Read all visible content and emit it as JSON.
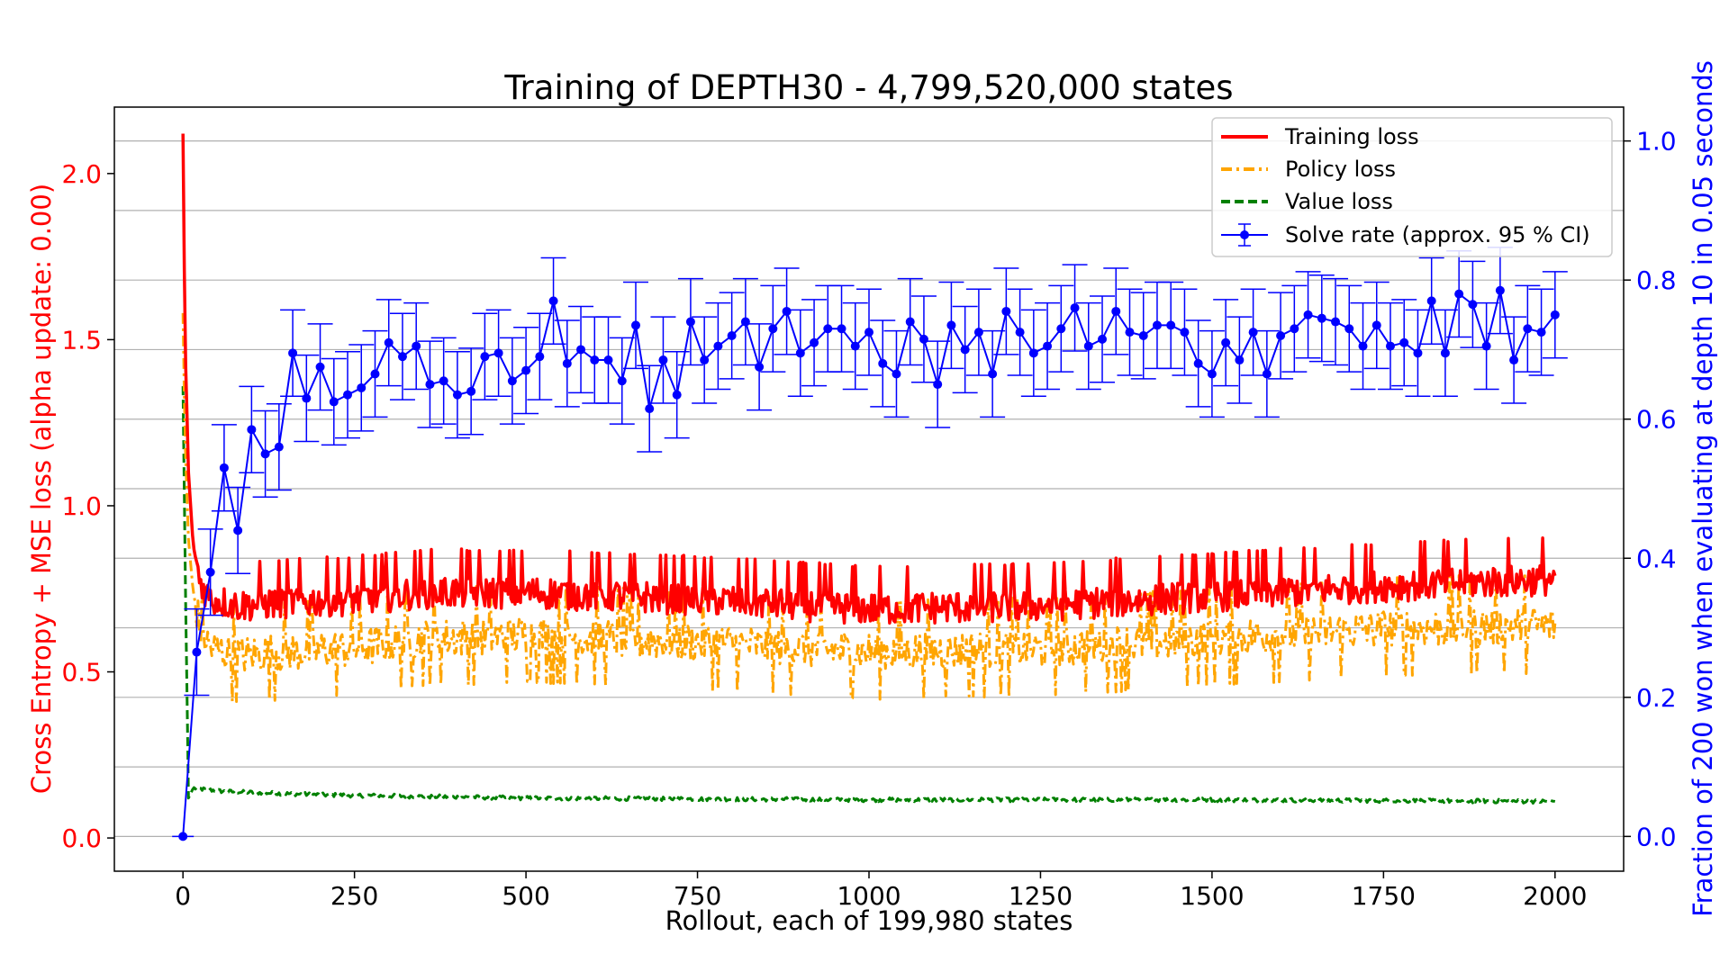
{
  "chart_data": {
    "type": "line",
    "title": "Training of DEPTH30 - 4,799,520,000 states",
    "xlabel": "Rollout, each of 199,980 states",
    "ylabel_left": "Cross Entropy + MSE loss (alpha update: 0.00)",
    "ylabel_right": "Fraction of 200 won when evaluating at depth 10 in 0.05 seconds",
    "xlim": [
      -100,
      2100
    ],
    "ylim_left": [
      -0.1,
      2.2
    ],
    "ylim_right": [
      -0.05,
      1.0487
    ],
    "xticks": [
      0,
      250,
      500,
      750,
      1000,
      1250,
      1500,
      1750,
      2000
    ],
    "xtick_labels": [
      "0",
      "250",
      "500",
      "750",
      "1000",
      "1250",
      "1500",
      "1750",
      "2000"
    ],
    "yticks_left": [
      0.0,
      0.5,
      1.0,
      1.5,
      2.0
    ],
    "ytick_labels_left": [
      "0.0",
      "0.5",
      "1.0",
      "1.5",
      "2.0"
    ],
    "yticks_right": [
      0.0,
      0.2,
      0.4,
      0.6,
      0.8,
      1.0
    ],
    "ytick_labels_right": [
      "0.0",
      "0.2",
      "0.4",
      "0.6",
      "0.8",
      "1.0"
    ],
    "grid": "horizontal on right axis",
    "legend_position": "top-right",
    "colors": {
      "left_axis": "#ff0000",
      "right_axis": "#0000ff",
      "training": "#ff0000",
      "policy": "#ffa500",
      "value": "#008000",
      "solve": "#0000ff",
      "grid": "#b0b0b0"
    },
    "loss_series": [
      {
        "name": "Training loss",
        "style": "solid",
        "color": "#ff0000",
        "profile": [
          [
            0,
            2.12
          ],
          [
            3,
            1.5
          ],
          [
            8,
            1.1
          ],
          [
            15,
            0.88
          ],
          [
            25,
            0.77
          ],
          [
            40,
            0.72
          ],
          [
            80,
            0.7
          ],
          [
            150,
            0.71
          ],
          [
            250,
            0.72
          ],
          [
            350,
            0.74
          ],
          [
            500,
            0.74
          ],
          [
            750,
            0.72
          ],
          [
            1000,
            0.69
          ],
          [
            1250,
            0.7
          ],
          [
            1500,
            0.73
          ],
          [
            1750,
            0.76
          ],
          [
            2000,
            0.78
          ]
        ],
        "noise": 0.05,
        "noise_start": 20
      },
      {
        "name": "Policy loss",
        "style": "dashdot",
        "color": "#ffa500",
        "profile": [
          [
            0,
            1.58
          ],
          [
            3,
            1.2
          ],
          [
            8,
            0.9
          ],
          [
            15,
            0.74
          ],
          [
            25,
            0.63
          ],
          [
            40,
            0.57
          ],
          [
            80,
            0.55
          ],
          [
            150,
            0.56
          ],
          [
            250,
            0.57
          ],
          [
            350,
            0.6
          ],
          [
            500,
            0.61
          ],
          [
            750,
            0.59
          ],
          [
            1000,
            0.56
          ],
          [
            1250,
            0.57
          ],
          [
            1500,
            0.6
          ],
          [
            1750,
            0.63
          ],
          [
            2000,
            0.64
          ]
        ],
        "noise": 0.06,
        "noise_start": 20
      },
      {
        "name": "Value loss",
        "style": "dashed",
        "color": "#008000",
        "profile": [
          [
            0,
            1.36
          ],
          [
            4,
            0.7
          ],
          [
            8,
            0.12
          ],
          [
            15,
            0.15
          ],
          [
            60,
            0.14
          ],
          [
            200,
            0.13
          ],
          [
            500,
            0.12
          ],
          [
            1000,
            0.115
          ],
          [
            1500,
            0.115
          ],
          [
            2000,
            0.11
          ]
        ],
        "noise": 0.006,
        "noise_start": 15
      }
    ],
    "solve_rate": {
      "name": "Solve rate (approx. 95 % CI)",
      "x": [
        0,
        20,
        40,
        60,
        80,
        100,
        120,
        140,
        160,
        180,
        200,
        220,
        240,
        260,
        280,
        300,
        320,
        340,
        360,
        380,
        400,
        420,
        440,
        460,
        480,
        500,
        520,
        540,
        560,
        580,
        600,
        620,
        640,
        660,
        680,
        700,
        720,
        740,
        760,
        780,
        800,
        820,
        840,
        860,
        880,
        900,
        920,
        940,
        960,
        980,
        1000,
        1020,
        1040,
        1060,
        1080,
        1100,
        1120,
        1140,
        1160,
        1180,
        1200,
        1220,
        1240,
        1260,
        1280,
        1300,
        1320,
        1340,
        1360,
        1380,
        1400,
        1420,
        1440,
        1460,
        1480,
        1500,
        1520,
        1540,
        1560,
        1580,
        1600,
        1620,
        1640,
        1660,
        1680,
        1700,
        1720,
        1740,
        1760,
        1780,
        1800,
        1820,
        1840,
        1860,
        1880,
        1900,
        1920,
        1940,
        1960,
        1980,
        2000
      ],
      "y": [
        0.0,
        0.265,
        0.38,
        0.53,
        0.44,
        0.585,
        0.55,
        0.56,
        0.695,
        0.63,
        0.675,
        0.625,
        0.635,
        0.645,
        0.665,
        0.71,
        0.69,
        0.705,
        0.65,
        0.655,
        0.635,
        0.64,
        0.69,
        0.695,
        0.655,
        0.67,
        0.69,
        0.77,
        0.68,
        0.7,
        0.685,
        0.685,
        0.655,
        0.735,
        0.615,
        0.685,
        0.635,
        0.74,
        0.685,
        0.705,
        0.72,
        0.74,
        0.675,
        0.73,
        0.755,
        0.695,
        0.71,
        0.73,
        0.73,
        0.705,
        0.725,
        0.68,
        0.665,
        0.74,
        0.715,
        0.65,
        0.735,
        0.7,
        0.725,
        0.665,
        0.755,
        0.725,
        0.695,
        0.705,
        0.73,
        0.76,
        0.705,
        0.715,
        0.755,
        0.725,
        0.72,
        0.735,
        0.735,
        0.725,
        0.68,
        0.665,
        0.71,
        0.685,
        0.725,
        0.665,
        0.72,
        0.73,
        0.75,
        0.745,
        0.74,
        0.73,
        0.705,
        0.735,
        0.705,
        0.71,
        0.695,
        0.77,
        0.695,
        0.78,
        0.765,
        0.705,
        0.785,
        0.685,
        0.73,
        0.725,
        0.75
      ],
      "ci": 0.062
    }
  }
}
